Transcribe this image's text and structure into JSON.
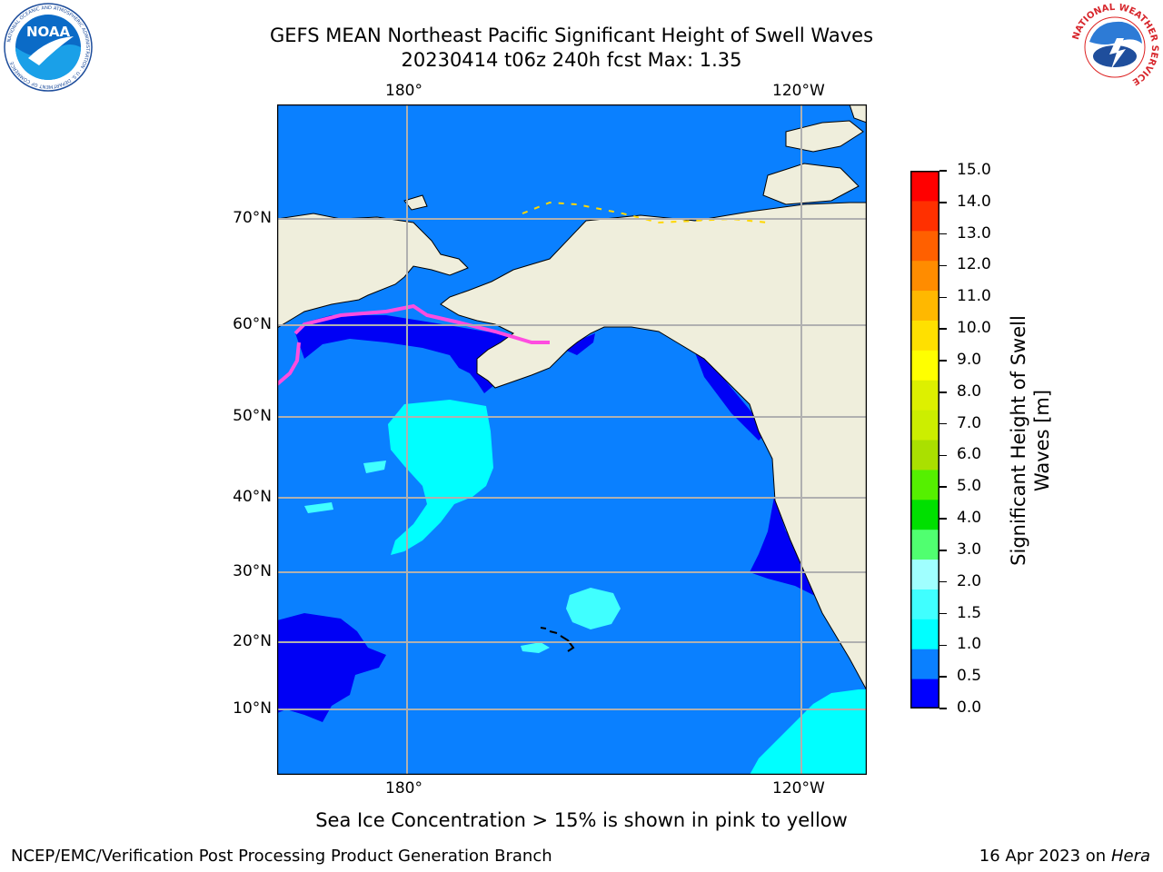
{
  "title": {
    "line1": "GEFS MEAN Northeast Pacific Significant Height of Swell Waves",
    "line2": "20230414 t06z 240h fcst   Max: 1.35"
  },
  "logos": {
    "noaa": {
      "text": "NOAA",
      "ring_text": "NATIONAL OCEANIC AND ATMOSPHERIC ADMINISTRATION · U.S. DEPARTMENT OF COMMERCE"
    },
    "nws": {
      "ring_text": "NATIONAL WEATHER SERVICE"
    }
  },
  "map": {
    "lon_labels": {
      "top": [
        "180°",
        "120°W"
      ],
      "bottom": [
        "180°",
        "120°W"
      ]
    },
    "lat_labels": [
      "70°N",
      "60°N",
      "50°N",
      "40°N",
      "30°N",
      "20°N",
      "10°N"
    ],
    "colors": {
      "land": "#efeedc",
      "ocean_1_0": "#0a80ff",
      "ocean_0_5": "#0000f5",
      "ocean_1_5": "#00ffff",
      "ocean_2_0": "#40ffff",
      "ice_pink": "#ff4de0",
      "ice_yellow": "#ffd700",
      "grid": "#b0b0b0"
    }
  },
  "colorbar": {
    "label": "Significant Height of Swell Waves [m]",
    "ticks": [
      "15.0",
      "14.0",
      "13.0",
      "12.0",
      "11.0",
      "10.0",
      "9.0",
      "8.0",
      "7.0",
      "6.0",
      "5.0",
      "4.0",
      "3.0",
      "2.0",
      "1.5",
      "1.0",
      "0.5",
      "0.0"
    ],
    "colors": [
      "#0000ff",
      "#0a80ff",
      "#00ffff",
      "#40ffff",
      "#a0ffff",
      "#50ff70",
      "#00e000",
      "#55f000",
      "#aae000",
      "#ccee00",
      "#ddf000",
      "#ffff00",
      "#ffe000",
      "#ffb800",
      "#ff8c00",
      "#ff6000",
      "#ff3000",
      "#ff0000"
    ]
  },
  "caption": "Sea Ice Concentration > 15% is shown in pink to yellow",
  "footer": {
    "left": "NCEP/EMC/Verification Post Processing Product Generation Branch",
    "right_prefix": "16 Apr 2023 on ",
    "right_machine": "Hera"
  }
}
